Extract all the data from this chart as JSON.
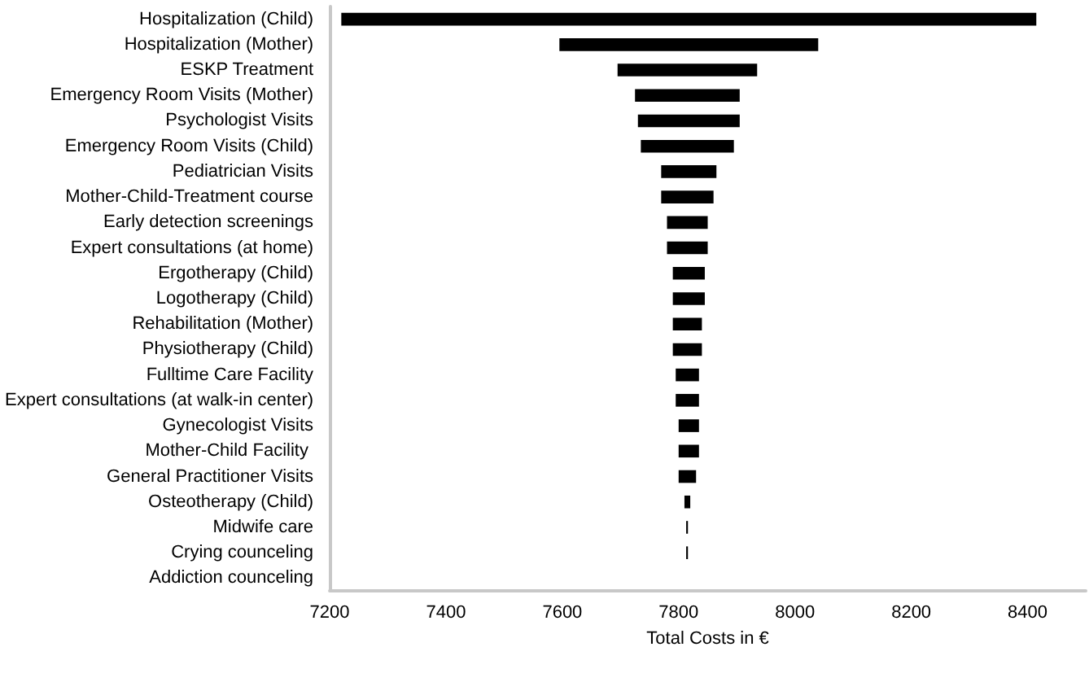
{
  "chart_data": {
    "type": "bar",
    "orientation": "horizontal",
    "xlabel": "Total Costs in €",
    "categories": [
      "Hospitalization (Child)",
      "Hospitalization (Mother)",
      "ESKP Treatment",
      "Emergency Room Visits (Mother)",
      "Psychologist Visits",
      "Emergency Room Visits (Child)",
      "Pediatrician Visits",
      "Mother-Child-Treatment course",
      "Early detection screenings",
      "Expert consultations (at home)",
      "Ergotherapy (Child)",
      "Logotherapy (Child)",
      "Rehabilitation (Mother)",
      "Physiotherapy (Child)",
      "Fulltime Care Facility",
      "Expert consultations (at walk-in center)",
      "Gynecologist Visits",
      "Mother-Child Facility ",
      "General Practitioner Visits",
      "Osteotherapy (Child)",
      "Midwife care",
      "Crying counceling",
      "Addiction counceling"
    ],
    "base": [
      7220,
      7595,
      7695,
      7725,
      7730,
      7735,
      7770,
      7770,
      7780,
      7780,
      7790,
      7790,
      7790,
      7790,
      7795,
      7795,
      7800,
      7800,
      7800,
      7810,
      7813,
      7813,
      null
    ],
    "values": [
      1195,
      445,
      240,
      180,
      175,
      160,
      95,
      90,
      70,
      70,
      55,
      55,
      50,
      50,
      40,
      40,
      35,
      35,
      30,
      10,
      3,
      3,
      null
    ],
    "color": "#000000",
    "xlim": [
      7200,
      8500
    ],
    "xticks": [
      7200,
      7400,
      7600,
      7800,
      8000,
      8200,
      8400
    ],
    "grid": false
  }
}
